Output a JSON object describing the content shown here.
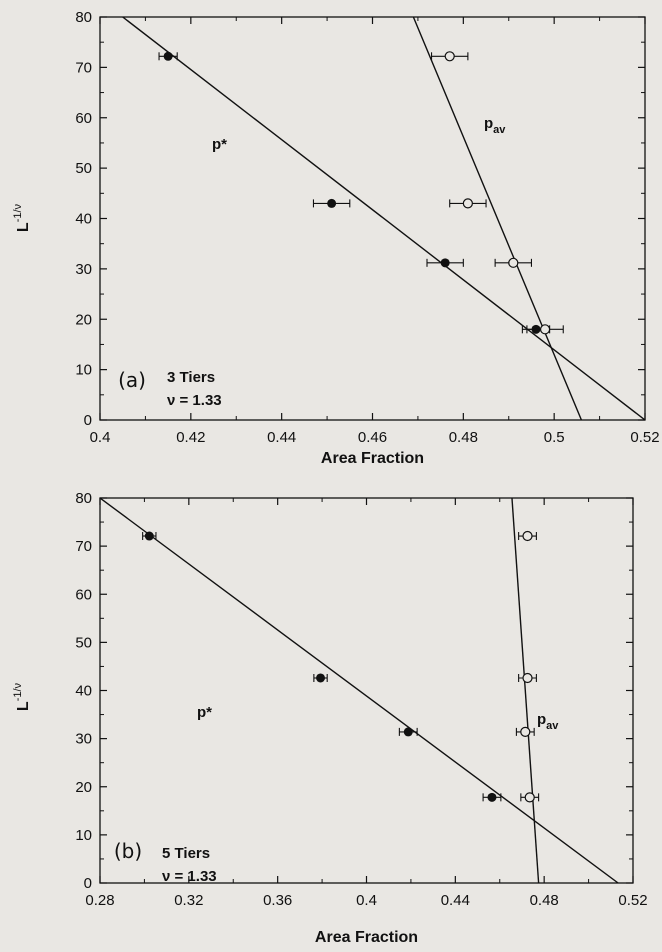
{
  "chart_data": [
    {
      "type": "scatter",
      "panel": "(a)",
      "tiers": "3 Tiers",
      "nu": "ν = 1.33",
      "xlabel": "Area Fraction",
      "ylabel": "L",
      "ylabel_exp": "-1/ν",
      "xlim": [
        0.4,
        0.52
      ],
      "ylim": [
        0,
        80
      ],
      "x_ticks": [
        0.4,
        0.42,
        0.44,
        0.46,
        0.48,
        0.5,
        0.52
      ],
      "x_tick_labels": [
        "0.4",
        "0.42",
        "0.44",
        "0.46",
        "0.48",
        "0.5",
        "0.52"
      ],
      "y_ticks": [
        0,
        10,
        20,
        30,
        40,
        50,
        60,
        70,
        80
      ],
      "y_tick_labels": [
        "0",
        "10",
        "20",
        "30",
        "40",
        "50",
        "60",
        "70",
        "80"
      ],
      "series": [
        {
          "name": "p*",
          "marker": "filled",
          "points": [
            {
              "x": 0.415,
              "y": 72.2,
              "xerr": 0.002
            },
            {
              "x": 0.451,
              "y": 43.0,
              "xerr": 0.004
            },
            {
              "x": 0.476,
              "y": 31.2,
              "xerr": 0.004
            },
            {
              "x": 0.496,
              "y": 18.0,
              "xerr": 0.003
            }
          ],
          "fit": [
            [
              0.405,
              80
            ],
            [
              0.52,
              0
            ]
          ]
        },
        {
          "name": "p",
          "name_sub": "av",
          "marker": "open",
          "points": [
            {
              "x": 0.477,
              "y": 72.2,
              "xerr": 0.004
            },
            {
              "x": 0.481,
              "y": 43.0,
              "xerr": 0.004
            },
            {
              "x": 0.491,
              "y": 31.2,
              "xerr": 0.004
            },
            {
              "x": 0.498,
              "y": 18.0,
              "xerr": 0.004
            }
          ],
          "fit": [
            [
              0.469,
              80
            ],
            [
              0.506,
              0
            ]
          ]
        }
      ]
    },
    {
      "type": "scatter",
      "panel": "(b)",
      "tiers": "5 Tiers",
      "nu": "ν = 1.33",
      "xlabel": "Area Fraction",
      "ylabel": "L",
      "ylabel_exp": "-1/ν",
      "xlim": [
        0.28,
        0.52
      ],
      "ylim": [
        0,
        80
      ],
      "x_ticks": [
        0.28,
        0.32,
        0.36,
        0.4,
        0.44,
        0.48,
        0.52
      ],
      "x_tick_labels": [
        "0.28",
        "0.32",
        "0.36",
        "0.4",
        "0.44",
        "0.48",
        "0.52"
      ],
      "y_ticks": [
        0,
        10,
        20,
        30,
        40,
        50,
        60,
        70,
        80
      ],
      "y_tick_labels": [
        "0",
        "10",
        "20",
        "30",
        "40",
        "50",
        "60",
        "70",
        "80"
      ],
      "series": [
        {
          "name": "p*",
          "marker": "filled",
          "points": [
            {
              "x": 0.3022,
              "y": 72.1,
              "xerr": 0.003
            },
            {
              "x": 0.3793,
              "y": 42.6,
              "xerr": 0.003
            },
            {
              "x": 0.4188,
              "y": 31.4,
              "xerr": 0.004
            },
            {
              "x": 0.4565,
              "y": 17.8,
              "xerr": 0.004
            }
          ],
          "fit": [
            [
              0.28,
              80
            ],
            [
              0.5133,
              0
            ]
          ]
        },
        {
          "name": "p",
          "name_sub": "av",
          "marker": "open",
          "points": [
            {
              "x": 0.4725,
              "y": 72.1,
              "xerr": 0.004
            },
            {
              "x": 0.4725,
              "y": 42.6,
              "xerr": 0.004
            },
            {
              "x": 0.4715,
              "y": 31.4,
              "xerr": 0.004
            },
            {
              "x": 0.4735,
              "y": 17.8,
              "xerr": 0.004
            }
          ],
          "fit": [
            [
              0.4655,
              80
            ],
            [
              0.4775,
              0
            ]
          ]
        }
      ]
    }
  ]
}
